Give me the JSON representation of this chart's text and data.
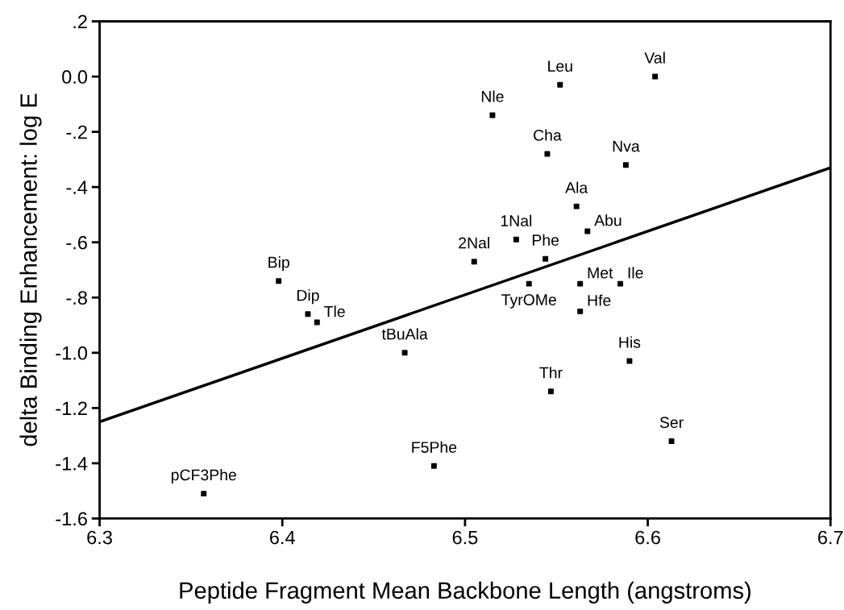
{
  "chart_data": {
    "type": "scatter",
    "xlabel": "Peptide Fragment Mean Backbone Length (angstroms)",
    "ylabel": "delta Binding Enhancement: log E",
    "xlim": [
      6.3,
      6.7
    ],
    "xticks": [
      6.3,
      6.4,
      6.5,
      6.6,
      6.7
    ],
    "ylim": [
      -1.6,
      0.2
    ],
    "yticks": [
      {
        "value": 0.2,
        "label": ".2"
      },
      {
        "value": 0.0,
        "label": "0.0"
      },
      {
        "value": -0.2,
        "label": "-.2"
      },
      {
        "value": -0.4,
        "label": "-.4"
      },
      {
        "value": -0.6,
        "label": "-.6"
      },
      {
        "value": -0.8,
        "label": "-.8"
      },
      {
        "value": -1.0,
        "label": "-1.0"
      },
      {
        "value": -1.2,
        "label": "-1.2"
      },
      {
        "value": -1.4,
        "label": "-1.4"
      },
      {
        "value": -1.6,
        "label": "-1.6"
      }
    ],
    "grid": false,
    "legend": false,
    "marker": "square",
    "series": [
      {
        "color": "#000000",
        "x": [
          6.604,
          6.552,
          6.515,
          6.545,
          6.588,
          6.561,
          6.567,
          6.528,
          6.505,
          6.544,
          6.535,
          6.563,
          6.585,
          6.563,
          6.59,
          6.547,
          6.613,
          6.483,
          6.357,
          6.398,
          6.414,
          6.419,
          6.467
        ],
        "values": [
          0.0,
          -0.03,
          -0.14,
          -0.28,
          -0.32,
          -0.47,
          -0.56,
          -0.59,
          -0.67,
          -0.66,
          -0.75,
          -0.75,
          -0.75,
          -0.85,
          -1.03,
          -1.14,
          -1.32,
          -1.41,
          -1.51,
          -0.74,
          -0.86,
          -0.89,
          -1.0
        ]
      },
      {
        "type": "line",
        "color": "#000000",
        "marker": "none",
        "line_style": "solid",
        "x": [
          6.3,
          6.7
        ],
        "values": [
          -1.25,
          -0.33
        ]
      }
    ],
    "annotations": [
      {
        "text": "Val",
        "x": 6.604,
        "y": 0.0
      },
      {
        "text": "Leu",
        "x": 6.552,
        "y": -0.03
      },
      {
        "text": "Nle",
        "x": 6.515,
        "y": -0.14
      },
      {
        "text": "Cha",
        "x": 6.545,
        "y": -0.28
      },
      {
        "text": "Nva",
        "x": 6.588,
        "y": -0.32
      },
      {
        "text": "Ala",
        "x": 6.561,
        "y": -0.47
      },
      {
        "text": "Abu",
        "x": 6.567,
        "y": -0.56
      },
      {
        "text": "1Nal",
        "x": 6.528,
        "y": -0.59
      },
      {
        "text": "2Nal",
        "x": 6.505,
        "y": -0.67
      },
      {
        "text": "Phe",
        "x": 6.544,
        "y": -0.66
      },
      {
        "text": "TyrOMe",
        "x": 6.535,
        "y": -0.75
      },
      {
        "text": "Met",
        "x": 6.563,
        "y": -0.75
      },
      {
        "text": "Ile",
        "x": 6.585,
        "y": -0.75
      },
      {
        "text": "Hfe",
        "x": 6.563,
        "y": -0.85
      },
      {
        "text": "His",
        "x": 6.59,
        "y": -1.03
      },
      {
        "text": "Thr",
        "x": 6.547,
        "y": -1.14
      },
      {
        "text": "Ser",
        "x": 6.613,
        "y": -1.32
      },
      {
        "text": "F5Phe",
        "x": 6.483,
        "y": -1.41
      },
      {
        "text": "pCF3Phe",
        "x": 6.357,
        "y": -1.51
      },
      {
        "text": "Bip",
        "x": 6.398,
        "y": -0.74
      },
      {
        "text": "Dip",
        "x": 6.414,
        "y": -0.86
      },
      {
        "text": "Tle",
        "x": 6.419,
        "y": -0.89
      },
      {
        "text": "tBuAla",
        "x": 6.467,
        "y": -1.0
      }
    ]
  }
}
